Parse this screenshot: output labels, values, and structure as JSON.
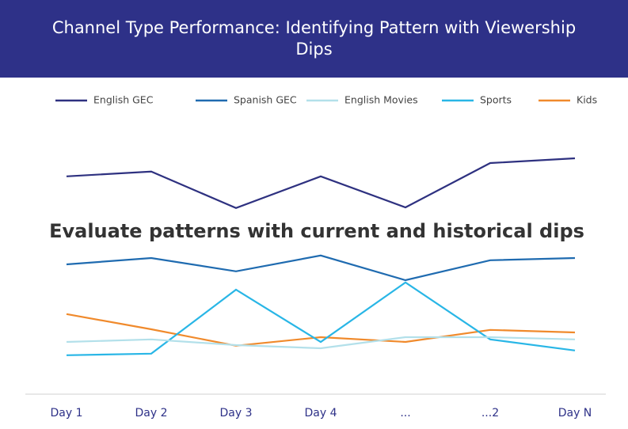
{
  "chart_data": {
    "type": "line",
    "title": "Channel Type Performance: Identifying Pattern with Viewership Dips",
    "annotation": "Evaluate patterns with current and historical dips",
    "categories": [
      "Day 1",
      "Day 2",
      "Day 3",
      "Day 4",
      "...",
      "...2",
      "Day N"
    ],
    "ylim": [
      0,
      100
    ],
    "legend": "top",
    "series": [
      {
        "name": "English GEC",
        "color": "#2e3180",
        "values": [
          68.8,
          70.3,
          58.8,
          68.8,
          59,
          73,
          74.5
        ]
      },
      {
        "name": "Spanish GEC",
        "color": "#1f6bb0",
        "values": [
          41,
          43,
          38.8,
          43.8,
          36,
          42.3,
          43
        ]
      },
      {
        "name": "English Movies",
        "color": "#b3e0ea",
        "values": [
          16.5,
          17.3,
          15.5,
          14.5,
          18,
          18,
          17.3
        ]
      },
      {
        "name": "Sports",
        "color": "#29b6e6",
        "values": [
          12.3,
          12.8,
          33,
          16.5,
          35.3,
          17.3,
          13.8
        ]
      },
      {
        "name": "Kids",
        "color": "#f08a2c",
        "values": [
          25.3,
          20.5,
          15.3,
          18,
          16.5,
          20.3,
          19.5
        ]
      }
    ]
  }
}
